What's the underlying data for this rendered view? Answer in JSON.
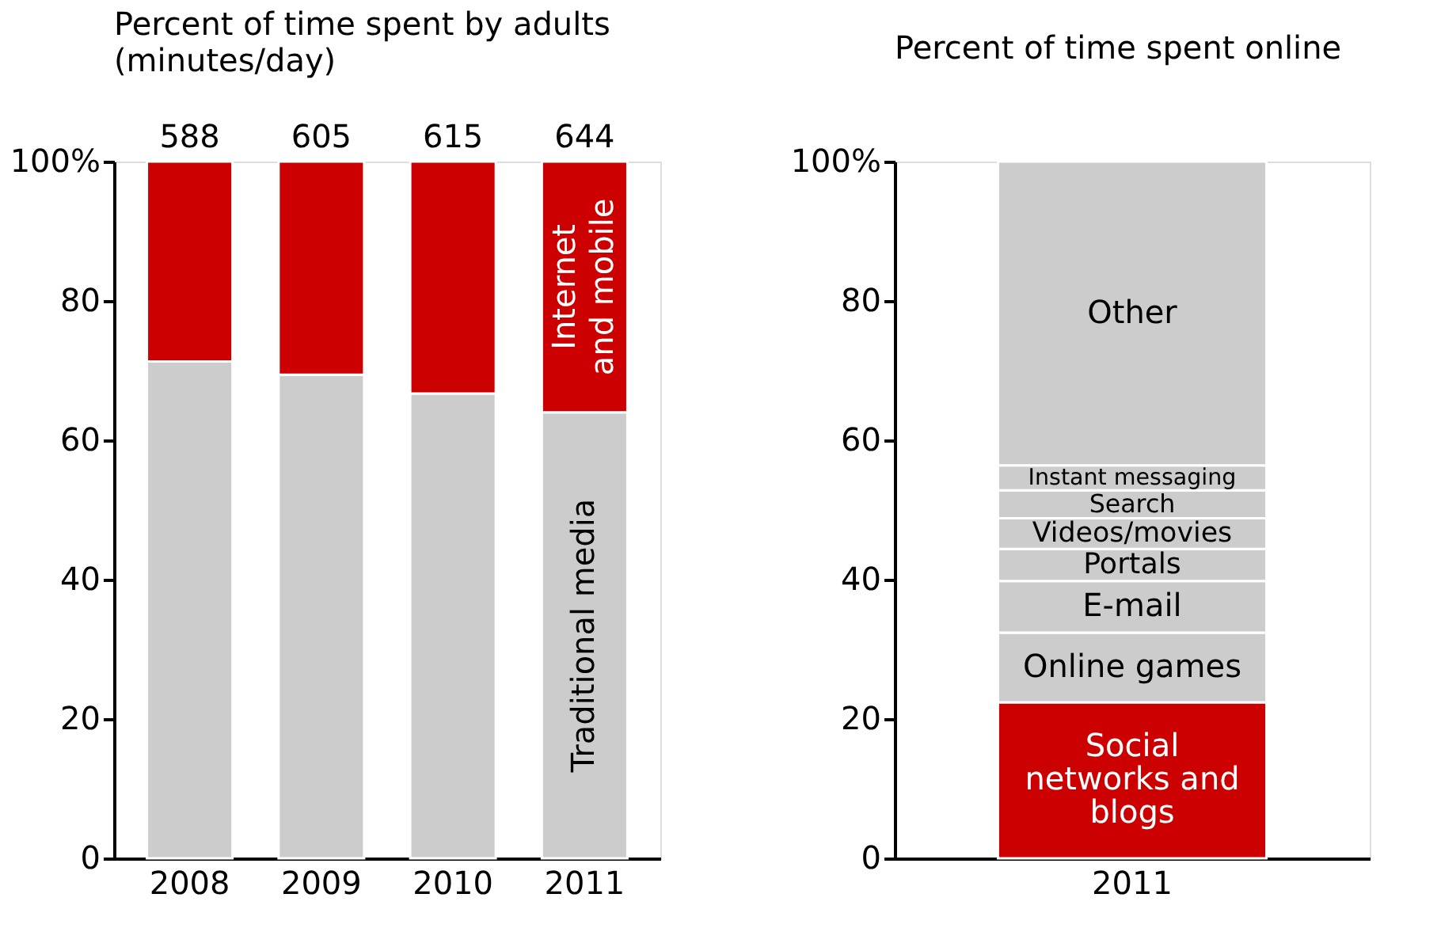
{
  "chart_data": [
    {
      "type": "bar",
      "stacked": true,
      "title": "Percent of time spent by adults",
      "subtitle": "(minutes/day)",
      "categories": [
        "2008",
        "2009",
        "2010",
        "2011"
      ],
      "series": [
        {
          "name": "Traditional media",
          "color": "#cccccc",
          "values": [
            71.3,
            69.4,
            66.7,
            64.0
          ]
        },
        {
          "name": "Internet and mobile",
          "color": "#cc0000",
          "values": [
            28.7,
            30.6,
            33.3,
            36.0
          ]
        }
      ],
      "annotations": [
        {
          "text": "588",
          "x": "2008",
          "y": 100
        },
        {
          "text": "605",
          "x": "2009",
          "y": 100
        },
        {
          "text": "615",
          "x": "2010",
          "y": 100
        },
        {
          "text": "644",
          "x": "2011",
          "y": 100
        }
      ],
      "ylim": [
        0,
        100
      ],
      "yticks": [
        0,
        20,
        40,
        60,
        80,
        {
          "value": 100,
          "label": "100%"
        }
      ],
      "grid": false
    },
    {
      "type": "bar",
      "stacked": true,
      "title": "Percent of time spent online",
      "categories": [
        "2011"
      ],
      "series": [
        {
          "name": "Social networks and blogs",
          "color": "#cc0000",
          "values": [
            22.4
          ]
        },
        {
          "name": "Online games",
          "color": "#cccccc",
          "values": [
            10.0
          ]
        },
        {
          "name": "E-mail",
          "color": "#cccccc",
          "values": [
            7.4
          ]
        },
        {
          "name": "Portals",
          "color": "#cccccc",
          "values": [
            4.6
          ]
        },
        {
          "name": "Videos/movies",
          "color": "#cccccc",
          "values": [
            4.4
          ]
        },
        {
          "name": "Search",
          "color": "#cccccc",
          "values": [
            4.0
          ]
        },
        {
          "name": "Instant messaging",
          "color": "#cccccc",
          "values": [
            3.6
          ]
        },
        {
          "name": "Other",
          "color": "#cccccc",
          "values": [
            43.6
          ]
        }
      ],
      "ylim": [
        0,
        100
      ],
      "yticks": [
        0,
        20,
        40,
        60,
        80,
        {
          "value": 100,
          "label": "100%"
        }
      ],
      "grid": false
    }
  ]
}
